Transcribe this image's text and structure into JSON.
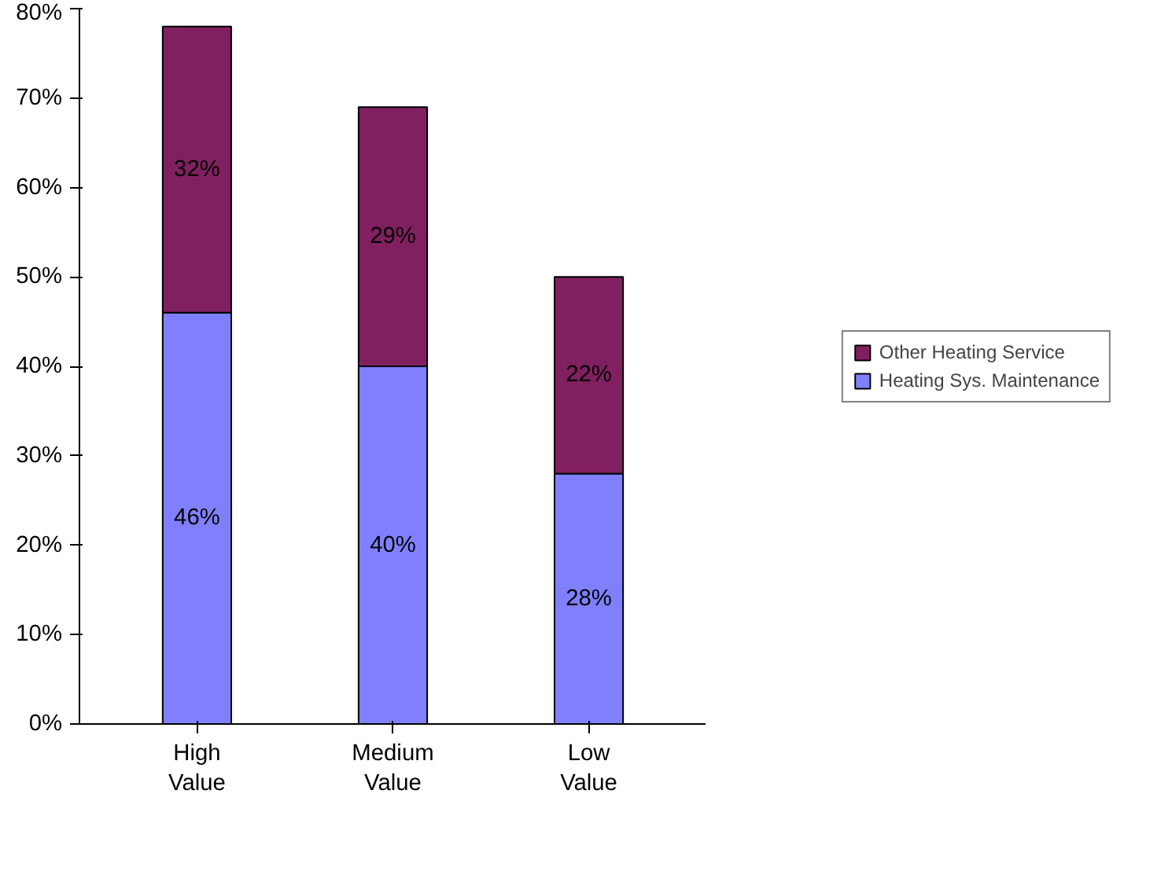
{
  "chart_data": {
    "type": "bar",
    "stacked": true,
    "categories": [
      "High Value",
      "Medium Value",
      "Low Value"
    ],
    "series": [
      {
        "name": "Heating Sys. Maintenance",
        "color": "#8080ff",
        "values": [
          46,
          40,
          28
        ],
        "value_labels": [
          "46%",
          "40%",
          "28%"
        ]
      },
      {
        "name": "Other Heating Service",
        "color": "#802060",
        "values": [
          32,
          29,
          22
        ],
        "value_labels": [
          "32%",
          "29%",
          "22%"
        ]
      }
    ],
    "ylim": [
      0,
      80
    ],
    "yticks": [
      {
        "value": 0,
        "label": "0%"
      },
      {
        "value": 10,
        "label": "10%"
      },
      {
        "value": 20,
        "label": "20%"
      },
      {
        "value": 30,
        "label": "30%"
      },
      {
        "value": 40,
        "label": "40%"
      },
      {
        "value": 50,
        "label": "50%"
      },
      {
        "value": 60,
        "label": "60%"
      },
      {
        "value": 70,
        "label": "70%"
      },
      {
        "value": 80,
        "label": "80%"
      }
    ],
    "grid": false,
    "legend": "right"
  }
}
